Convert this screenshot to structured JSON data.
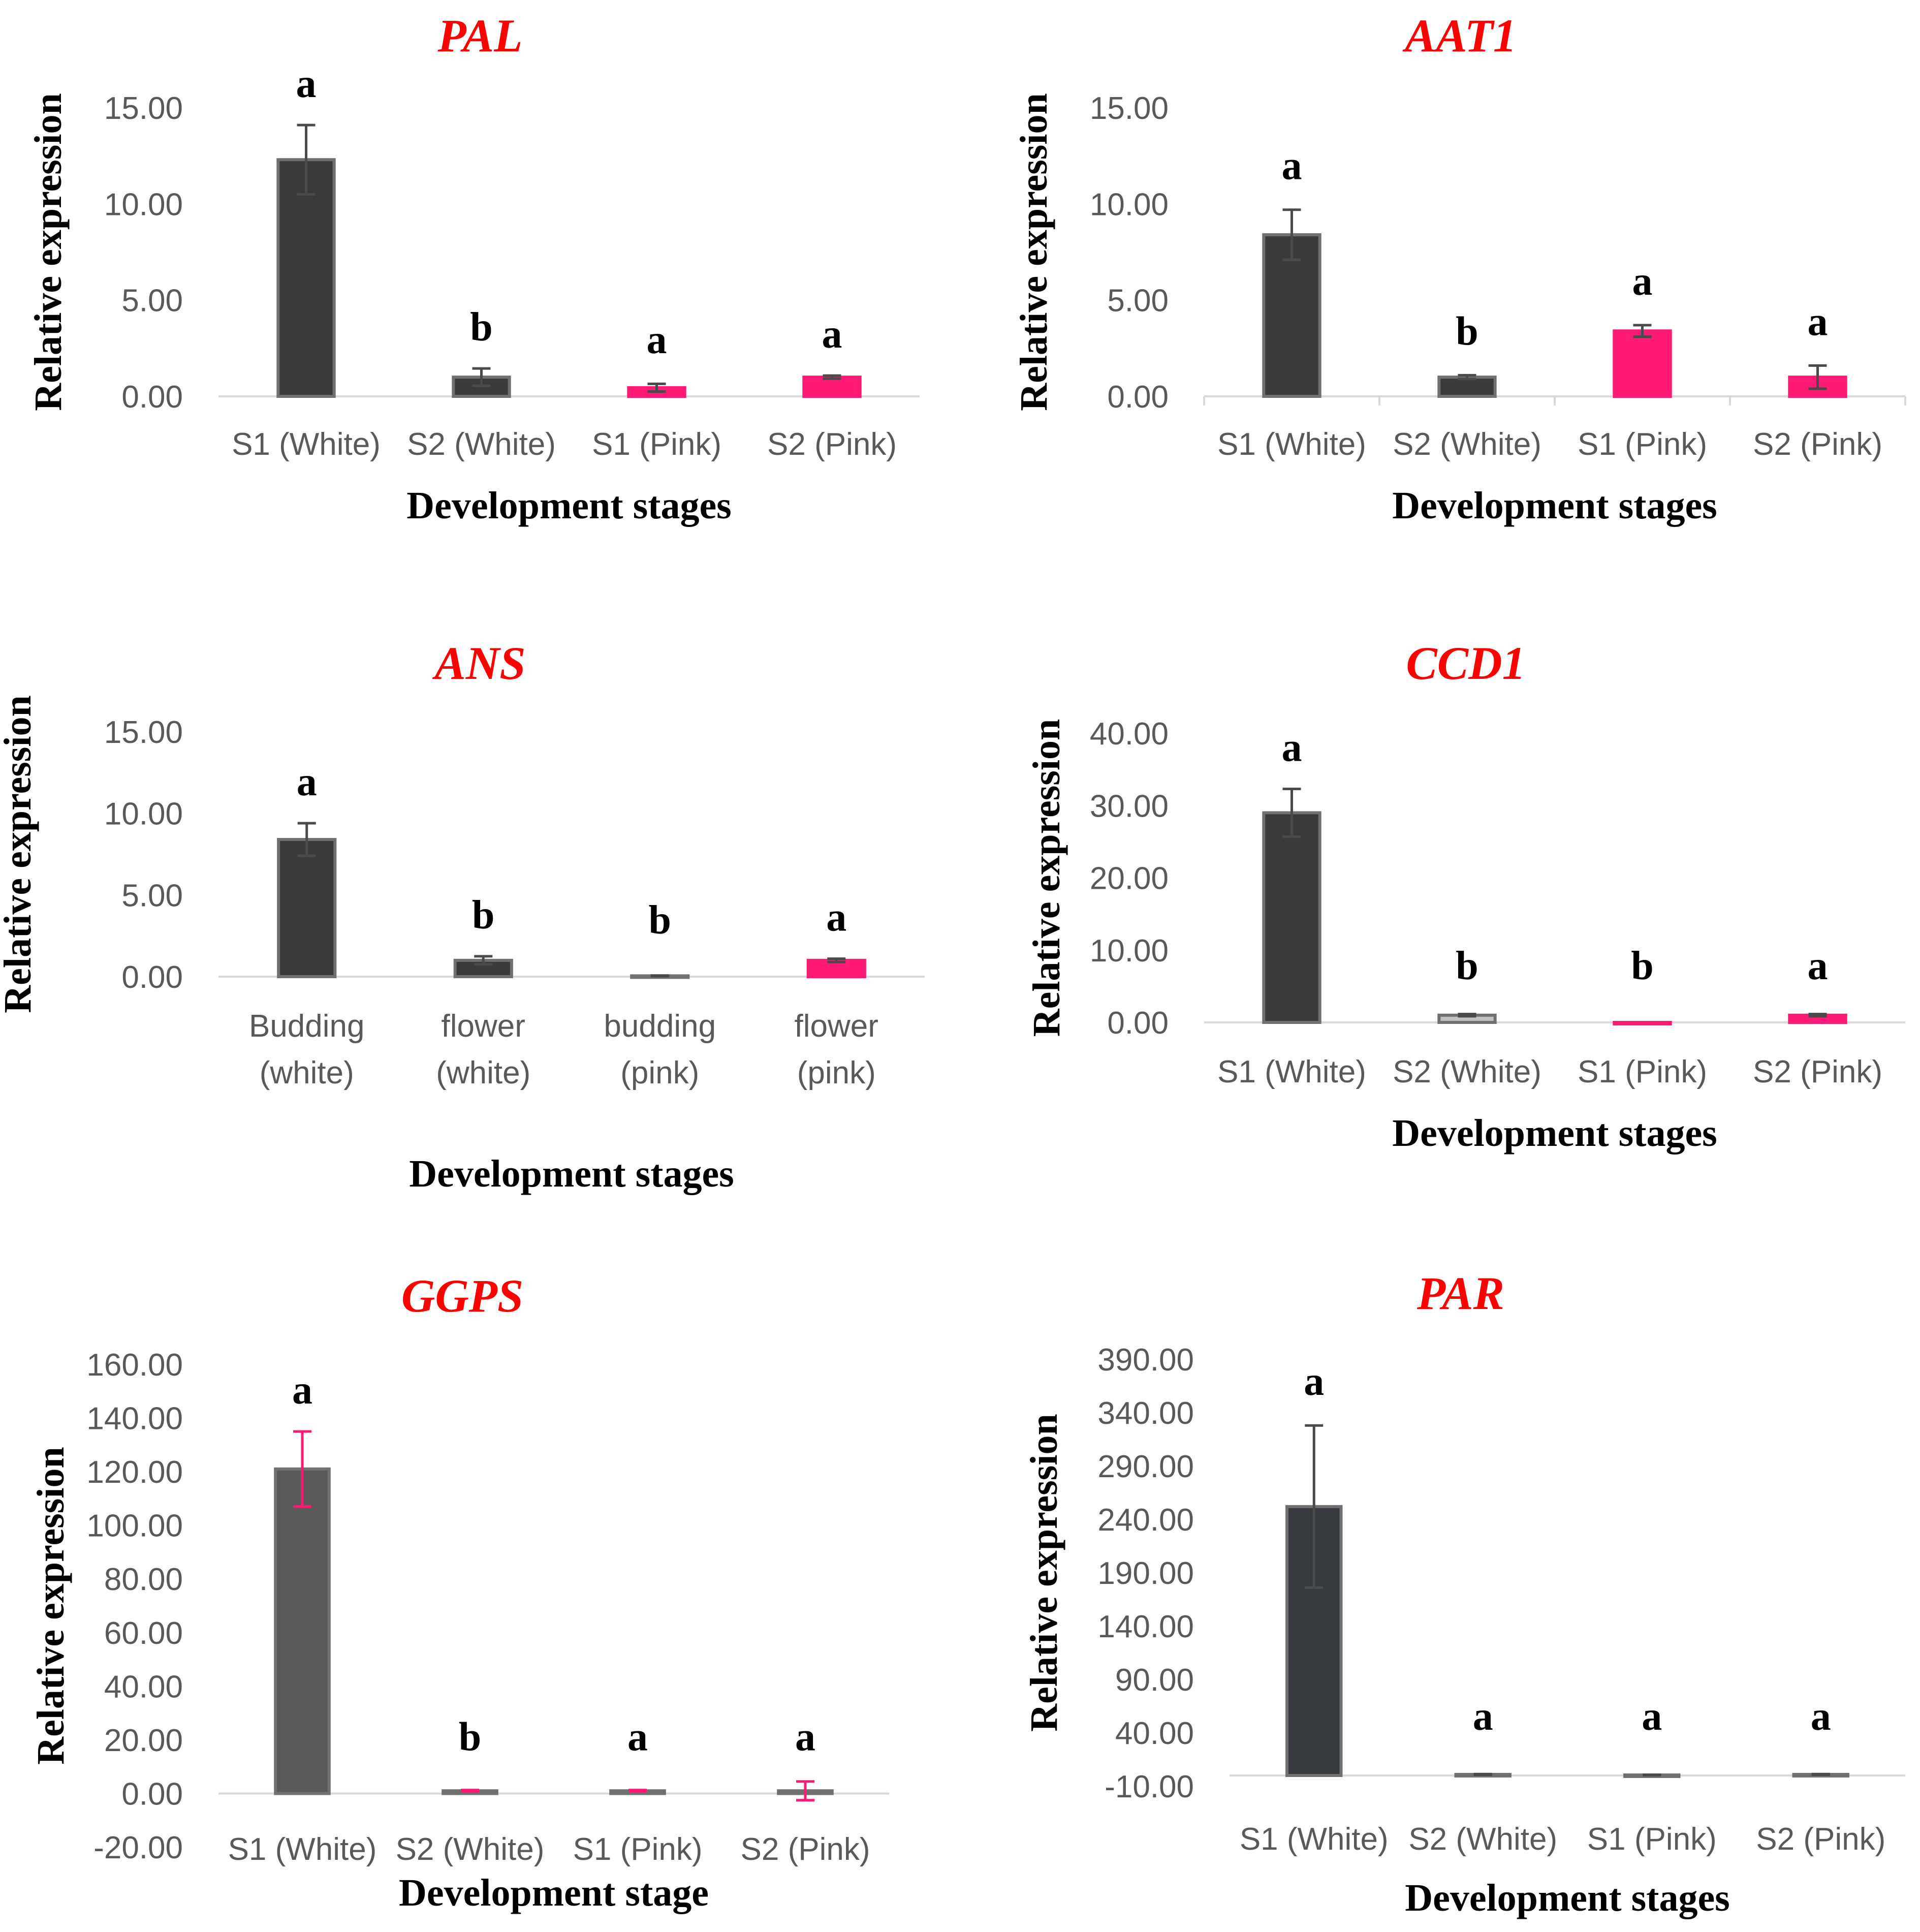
{
  "chart_data": [
    {
      "type": "bar",
      "title": "PAL",
      "ylabel": "Relative expression",
      "xlabel": "Development stages",
      "yticks": [
        "0.00",
        "5.00",
        "10.00",
        "15.00"
      ],
      "ylim": [
        0,
        15
      ],
      "categories": [
        [
          "S1 (White)"
        ],
        [
          "S2 (White)"
        ],
        [
          "S1 (Pink)"
        ],
        [
          "S2 (Pink)"
        ]
      ],
      "values": [
        12.3,
        1.0,
        0.45,
        1.0
      ],
      "errors": [
        1.8,
        0.45,
        0.2,
        0.08
      ],
      "letters": [
        "a",
        "b",
        "a",
        "a"
      ],
      "colors": [
        "#3a3a3a",
        "#3a3a3a",
        "#ff1a75",
        "#ff1a75"
      ]
    },
    {
      "type": "bar",
      "title": "AAT1",
      "ylabel": "Relative expression",
      "xlabel": "Development stages",
      "yticks": [
        "0.00",
        "5.00",
        "10.00",
        "15.00"
      ],
      "ylim": [
        0,
        15
      ],
      "categories": [
        [
          "S1 (White)"
        ],
        [
          "S2 (White)"
        ],
        [
          "S1 (Pink)"
        ],
        [
          "S2 (Pink)"
        ]
      ],
      "values": [
        8.4,
        1.0,
        3.4,
        1.0
      ],
      "errors": [
        1.3,
        0.1,
        0.3,
        0.6
      ],
      "letters": [
        "a",
        "b",
        "a",
        "a"
      ],
      "colors": [
        "#3a3a3a",
        "#3a3a3a",
        "#ff1a75",
        "#ff1a75"
      ]
    },
    {
      "type": "bar",
      "title": "ANS",
      "ylabel": "Relative expression",
      "xlabel": "Development  stages",
      "yticks": [
        "0.00",
        "5.00",
        "10.00",
        "15.00"
      ],
      "ylim": [
        0,
        15
      ],
      "categories": [
        [
          "Budding",
          "(white)"
        ],
        [
          "flower",
          "(white)"
        ],
        [
          "budding",
          "(pink)"
        ],
        [
          "flower",
          "(pink)"
        ]
      ],
      "values": [
        8.4,
        1.0,
        0.05,
        1.0
      ],
      "errors": [
        1.0,
        0.25,
        0.02,
        0.1
      ],
      "letters": [
        "a",
        "b",
        "b",
        "a"
      ],
      "colors": [
        "#3a3a3a",
        "#3a3a3a",
        "#3a3a3a",
        "#ff1a75"
      ]
    },
    {
      "type": "bar",
      "title": "CCD1",
      "ylabel": "Relative expression",
      "xlabel": "Development stages",
      "yticks": [
        "0.00",
        "10.00",
        "20.00",
        "30.00",
        "40.00"
      ],
      "ylim": [
        0,
        40
      ],
      "categories": [
        [
          "S1 (White)"
        ],
        [
          "S2 (White)"
        ],
        [
          "S1 (Pink)"
        ],
        [
          "S2 (Pink)"
        ]
      ],
      "values": [
        29.0,
        1.0,
        0.0,
        1.0
      ],
      "errors": [
        3.3,
        0.15,
        0.0,
        0.15
      ],
      "letters": [
        "a",
        "b",
        "b",
        "a"
      ],
      "colors": [
        "#3a3a3a",
        "#c0c0c0",
        "#ff1a75",
        "#ff1a75"
      ]
    },
    {
      "type": "bar",
      "title": "GGPS",
      "ylabel": "Relative expression",
      "xlabel": "Development stage",
      "yticks": [
        "-20.00",
        "0.00",
        "20.00",
        "40.00",
        "60.00",
        "80.00",
        "100.00",
        "120.00",
        "140.00",
        "160.00"
      ],
      "ylim": [
        -20,
        160
      ],
      "categories": [
        [
          "S1 (White)"
        ],
        [
          "S2 (White)"
        ],
        [
          "S1 (Pink)"
        ],
        [
          "S2 (Pink)"
        ]
      ],
      "values": [
        121.0,
        1.0,
        1.0,
        1.0
      ],
      "errors": [
        14.0,
        0.3,
        0.3,
        3.5
      ],
      "letters": [
        "a",
        "b",
        "a",
        "a"
      ],
      "colors": [
        "#595959",
        "#5bc0de",
        "#5bc0de",
        "#5bc0de"
      ],
      "error_color": "#ff1a75"
    },
    {
      "type": "bar",
      "title": "PAR",
      "ylabel": "Relative expression",
      "xlabel": "Development stages",
      "yticks": [
        "-10.00",
        "40.00",
        "90.00",
        "140.00",
        "190.00",
        "240.00",
        "290.00",
        "340.00",
        "390.00"
      ],
      "ylim": [
        -10,
        390
      ],
      "categories": [
        [
          "S1 (White)"
        ],
        [
          "S2 (White)"
        ],
        [
          "S1 (Pink)"
        ],
        [
          "S2 (Pink)"
        ]
      ],
      "values": [
        252.0,
        1.0,
        0.5,
        1.0
      ],
      "errors": [
        76.0,
        0.3,
        0.2,
        0.3
      ],
      "letters": [
        "a",
        "a",
        "a",
        "a"
      ],
      "colors": [
        "#363a3f",
        "#595959",
        "#595959",
        "#595959"
      ]
    }
  ]
}
